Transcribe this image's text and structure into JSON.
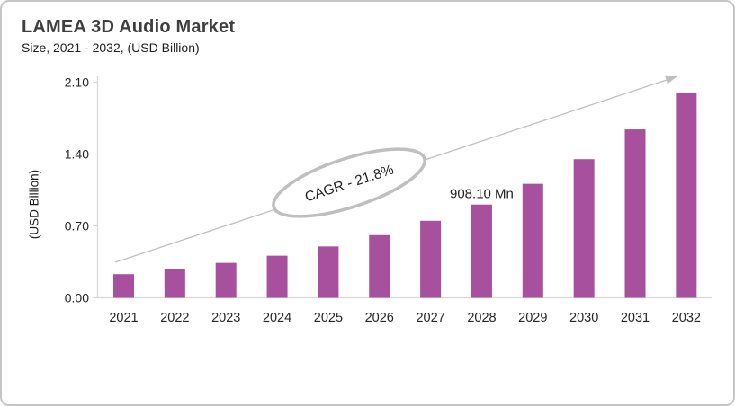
{
  "header": {
    "title": "LAMEA 3D Audio Market",
    "subtitle": "Size, 2021 - 2032, (USD Billion)"
  },
  "chart_data": {
    "type": "bar",
    "title": "LAMEA 3D Audio Market",
    "subtitle": "Size, 2021 - 2032, (USD Billion)",
    "categories": [
      "2021",
      "2022",
      "2023",
      "2024",
      "2025",
      "2026",
      "2027",
      "2028",
      "2029",
      "2030",
      "2031",
      "2032"
    ],
    "values": [
      0.23,
      0.28,
      0.34,
      0.41,
      0.5,
      0.61,
      0.75,
      0.9081,
      1.11,
      1.35,
      1.64,
      2.0
    ],
    "xlabel": "",
    "ylabel": "(USD Billion)",
    "ylim": [
      0,
      2.1
    ],
    "yticks": [
      0.0,
      0.7,
      1.4,
      2.1
    ],
    "ytick_labels": [
      "0.00",
      "0.70",
      "1.40",
      "2.10"
    ],
    "grid": false,
    "legend": "none",
    "bar_color": "#A7509E",
    "annotations": {
      "cagr_label": "CAGR - 21.8%",
      "data_label": {
        "category": "2028",
        "text": "908.10 Mn"
      },
      "trend_arrow": "upward diagonal arrow from 2021 to 2032"
    }
  },
  "colors": {
    "bar": "#A7509E",
    "axis_line": "#D6D6D6",
    "arrow": "#BFBFBF",
    "ellipse_stroke": "#BFBFBF",
    "ellipse_fill": "#FFFFFF",
    "tick_text": "#262626",
    "annotation_text": "#1f1f1f"
  }
}
